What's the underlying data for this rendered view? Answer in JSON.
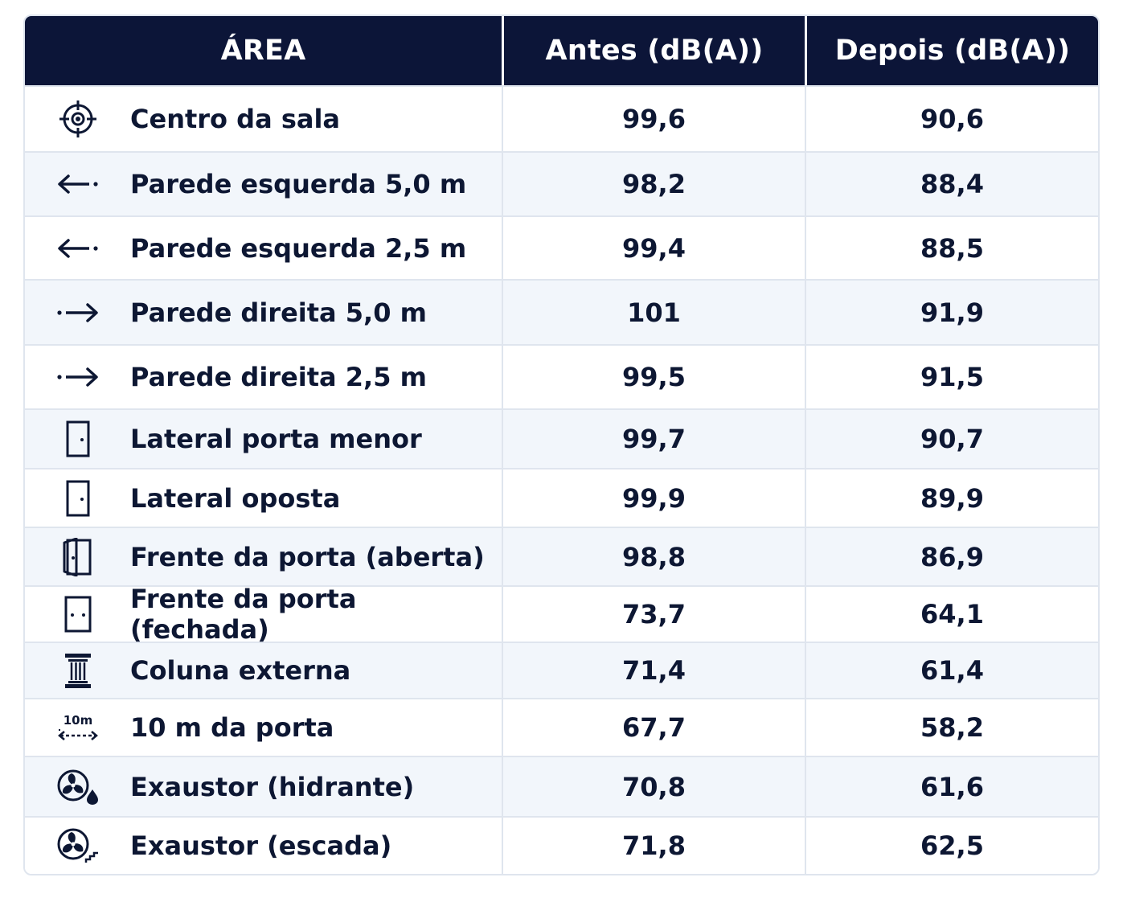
{
  "header": {
    "area": "ÁREA",
    "before": "Antes (dB(A))",
    "after": "Depois (dB(A))"
  },
  "rows": [
    {
      "icon": "crosshair-icon",
      "area": "Centro da sala",
      "before": "99,6",
      "after": "90,6"
    },
    {
      "icon": "arrow-left-icon",
      "area": "Parede esquerda 5,0 m",
      "before": "98,2",
      "after": "88,4"
    },
    {
      "icon": "arrow-left-icon",
      "area": "Parede esquerda 2,5 m",
      "before": "99,4",
      "after": "88,5"
    },
    {
      "icon": "arrow-right-icon",
      "area": "Parede direita 5,0 m",
      "before": "101",
      "after": "91,9"
    },
    {
      "icon": "arrow-right-icon",
      "area": "Parede direita 2,5 m",
      "before": "99,5",
      "after": "91,5"
    },
    {
      "icon": "door-icon",
      "area": "Lateral porta menor",
      "before": "99,7",
      "after": "90,7"
    },
    {
      "icon": "door-icon",
      "area": "Lateral oposta",
      "before": "99,9",
      "after": "89,9"
    },
    {
      "icon": "open-door-icon",
      "area": "Frente da porta (aberta)",
      "before": "98,8",
      "after": "86,9"
    },
    {
      "icon": "closed-door-icon",
      "area": "Frente da porta (fechada)",
      "before": "73,7",
      "after": "64,1"
    },
    {
      "icon": "column-icon",
      "area": "Coluna externa",
      "before": "71,4",
      "after": "61,4"
    },
    {
      "icon": "distance-10m-icon",
      "icon_text": "10m",
      "area": "10 m da porta",
      "before": "67,7",
      "after": "58,2"
    },
    {
      "icon": "fan-drop-icon",
      "area": "Exaustor (hidrante)",
      "before": "70,8",
      "after": "61,6"
    },
    {
      "icon": "fan-stairs-icon",
      "area": "Exaustor (escada)",
      "before": "71,8",
      "after": "62,5"
    }
  ]
}
